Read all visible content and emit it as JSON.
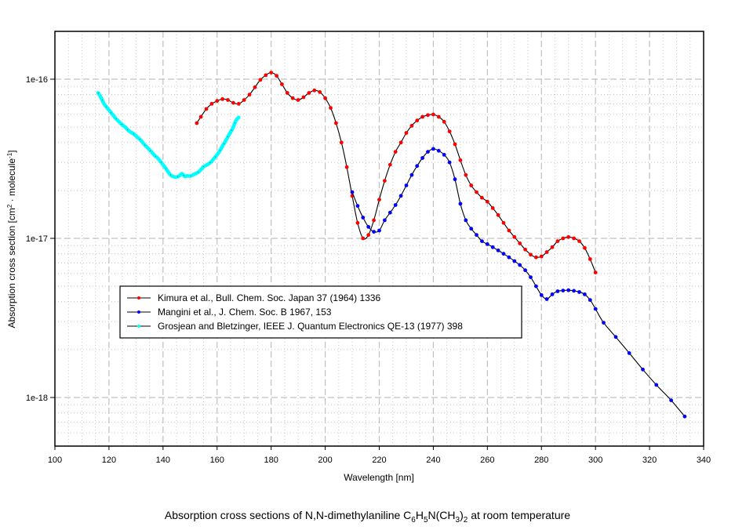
{
  "chart_data": {
    "type": "line",
    "title": "Absorption cross sections of N,N-dimethylaniline C6H5N(CH3)2 at room temperature",
    "caption_parts": {
      "pre": "Absorption cross sections of N,N-dimethylaniline C",
      "s1": "6",
      "mid1": "H",
      "s2": "5",
      "mid2": "N(CH",
      "s3": "3",
      "mid3": ")",
      "s4": "2",
      "post": " at room temperature"
    },
    "xlabel": "Wavelength [nm]",
    "ylabel": "Absorption cross section [cm² · molecule⁻¹]",
    "ylabel_parts": {
      "pre": "Absorption cross section [cm",
      "sup1": "2",
      "mid": " · molecule",
      "sup2": "-1",
      "post": "]"
    },
    "xlim": [
      100,
      340
    ],
    "ylim": [
      5e-19,
      2e-16
    ],
    "yscale": "log",
    "xticks": [
      100,
      120,
      140,
      160,
      180,
      200,
      220,
      240,
      260,
      280,
      300,
      320,
      340
    ],
    "yticks": [
      {
        "value": 1e-16,
        "label": "1e-16"
      },
      {
        "value": 1e-17,
        "label": "1e-17"
      },
      {
        "value": 1e-18,
        "label": "1e-18"
      }
    ],
    "grid": true,
    "legend_position": "lower-left inside",
    "series": [
      {
        "name": "Kimura et al., Bull. Chem. Soc. Japan 37 (1964) 1336",
        "color": "#ff0000",
        "points": [
          [
            152.5,
            5.3e-17
          ],
          [
            154,
            5.8e-17
          ],
          [
            156,
            6.5e-17
          ],
          [
            158,
            7e-17
          ],
          [
            160,
            7.3e-17
          ],
          [
            162,
            7.5e-17
          ],
          [
            164,
            7.4e-17
          ],
          [
            166,
            7.1e-17
          ],
          [
            168,
            7e-17
          ],
          [
            170,
            7.4e-17
          ],
          [
            172,
            8e-17
          ],
          [
            174,
            8.9e-17
          ],
          [
            176,
            9.9e-17
          ],
          [
            178,
            1.06e-16
          ],
          [
            180,
            1.1e-16
          ],
          [
            182,
            1.05e-16
          ],
          [
            184,
            9.3e-17
          ],
          [
            186,
            8.2e-17
          ],
          [
            188,
            7.6e-17
          ],
          [
            190,
            7.4e-17
          ],
          [
            192,
            7.7e-17
          ],
          [
            194,
            8.2e-17
          ],
          [
            196,
            8.5e-17
          ],
          [
            198,
            8.3e-17
          ],
          [
            200,
            7.6e-17
          ],
          [
            202,
            6.6e-17
          ],
          [
            204,
            5.3e-17
          ],
          [
            206,
            4e-17
          ],
          [
            208,
            2.8e-17
          ],
          [
            210,
            1.85e-17
          ],
          [
            212,
            1.25e-17
          ],
          [
            214,
            1e-17
          ],
          [
            216,
            1.05e-17
          ],
          [
            218,
            1.3e-17
          ],
          [
            220,
            1.75e-17
          ],
          [
            222,
            2.3e-17
          ],
          [
            224,
            2.9e-17
          ],
          [
            226,
            3.5e-17
          ],
          [
            228,
            4e-17
          ],
          [
            230,
            4.6e-17
          ],
          [
            232,
            5.1e-17
          ],
          [
            234,
            5.5e-17
          ],
          [
            236,
            5.8e-17
          ],
          [
            238,
            5.95e-17
          ],
          [
            240,
            6e-17
          ],
          [
            242,
            5.8e-17
          ],
          [
            244,
            5.4e-17
          ],
          [
            246,
            4.7e-17
          ],
          [
            248,
            3.9e-17
          ],
          [
            250,
            3.1e-17
          ],
          [
            252,
            2.5e-17
          ],
          [
            254,
            2.15e-17
          ],
          [
            256,
            1.95e-17
          ],
          [
            258,
            1.8e-17
          ],
          [
            260,
            1.7e-17
          ],
          [
            262,
            1.55e-17
          ],
          [
            264,
            1.4e-17
          ],
          [
            266,
            1.25e-17
          ],
          [
            268,
            1.12e-17
          ],
          [
            270,
            1.02e-17
          ],
          [
            272,
            9.3e-18
          ],
          [
            274,
            8.5e-18
          ],
          [
            276,
            7.9e-18
          ],
          [
            278,
            7.6e-18
          ],
          [
            280,
            7.7e-18
          ],
          [
            282,
            8.2e-18
          ],
          [
            284,
            8.8e-18
          ],
          [
            286,
            9.6e-18
          ],
          [
            288,
            1e-17
          ],
          [
            290,
            1.02e-17
          ],
          [
            292,
            1e-17
          ],
          [
            294,
            9.6e-18
          ],
          [
            296,
            8.7e-18
          ],
          [
            298,
            7.4e-18
          ],
          [
            300,
            6.1e-18
          ]
        ]
      },
      {
        "name": "Mangini et al., J. Chem. Soc. B 1967, 153",
        "color": "#0000ff",
        "points": [
          [
            210,
            1.95e-17
          ],
          [
            212,
            1.6e-17
          ],
          [
            214,
            1.35e-17
          ],
          [
            216,
            1.18e-17
          ],
          [
            218,
            1.1e-17
          ],
          [
            220,
            1.12e-17
          ],
          [
            222,
            1.3e-17
          ],
          [
            224,
            1.45e-17
          ],
          [
            226,
            1.62e-17
          ],
          [
            228,
            1.85e-17
          ],
          [
            230,
            2.15e-17
          ],
          [
            232,
            2.5e-17
          ],
          [
            234,
            2.85e-17
          ],
          [
            236,
            3.2e-17
          ],
          [
            238,
            3.5e-17
          ],
          [
            240,
            3.65e-17
          ],
          [
            242,
            3.55e-17
          ],
          [
            244,
            3.35e-17
          ],
          [
            246,
            3e-17
          ],
          [
            248,
            2.35e-17
          ],
          [
            250,
            1.65e-17
          ],
          [
            252,
            1.3e-17
          ],
          [
            254,
            1.15e-17
          ],
          [
            256,
            1.05e-17
          ],
          [
            258,
            9.6e-18
          ],
          [
            260,
            9.2e-18
          ],
          [
            262,
            8.8e-18
          ],
          [
            264,
            8.4e-18
          ],
          [
            266,
            8e-18
          ],
          [
            268,
            7.6e-18
          ],
          [
            270,
            7.2e-18
          ],
          [
            272,
            6.8e-18
          ],
          [
            274,
            6.3e-18
          ],
          [
            276,
            5.7e-18
          ],
          [
            278,
            5e-18
          ],
          [
            280,
            4.4e-18
          ],
          [
            282,
            4.15e-18
          ],
          [
            284,
            4.45e-18
          ],
          [
            286,
            4.65e-18
          ],
          [
            288,
            4.7e-18
          ],
          [
            290,
            4.72e-18
          ],
          [
            292,
            4.68e-18
          ],
          [
            294,
            4.6e-18
          ],
          [
            296,
            4.45e-18
          ],
          [
            298,
            4.1e-18
          ],
          [
            300,
            3.6e-18
          ],
          [
            303,
            2.95e-18
          ],
          [
            307.5,
            2.4e-18
          ],
          [
            312.5,
            1.9e-18
          ],
          [
            317.5,
            1.5e-18
          ],
          [
            322.5,
            1.2e-18
          ],
          [
            328,
            9.6e-19
          ],
          [
            333,
            7.6e-19
          ]
        ]
      },
      {
        "name": "Grosjean and Bletzinger, IEEE J. Quantum Electronics QE-13 (1977) 398",
        "color": "#00ffff",
        "points": [
          [
            116,
            8.2e-17
          ],
          [
            117,
            7.7e-17
          ],
          [
            118,
            7.1e-17
          ],
          [
            119,
            6.7e-17
          ],
          [
            120,
            6.4e-17
          ],
          [
            121,
            6.1e-17
          ],
          [
            122,
            5.8e-17
          ],
          [
            123,
            5.55e-17
          ],
          [
            124,
            5.35e-17
          ],
          [
            125,
            5.15e-17
          ],
          [
            126,
            5e-17
          ],
          [
            127,
            4.8e-17
          ],
          [
            128,
            4.65e-17
          ],
          [
            129,
            4.55e-17
          ],
          [
            130,
            4.4e-17
          ],
          [
            131,
            4.25e-17
          ],
          [
            132,
            4.1e-17
          ],
          [
            133,
            3.9e-17
          ],
          [
            134,
            3.75e-17
          ],
          [
            135,
            3.6e-17
          ],
          [
            136,
            3.45e-17
          ],
          [
            137,
            3.3e-17
          ],
          [
            138,
            3.2e-17
          ],
          [
            139,
            3.05e-17
          ],
          [
            140,
            2.9e-17
          ],
          [
            141,
            2.75e-17
          ],
          [
            142,
            2.6e-17
          ],
          [
            143,
            2.48e-17
          ],
          [
            144,
            2.44e-17
          ],
          [
            145,
            2.43e-17
          ],
          [
            146,
            2.47e-17
          ],
          [
            147,
            2.55e-17
          ],
          [
            148,
            2.45e-17
          ],
          [
            149,
            2.47e-17
          ],
          [
            150,
            2.46e-17
          ],
          [
            151,
            2.5e-17
          ],
          [
            152,
            2.55e-17
          ],
          [
            153,
            2.6e-17
          ],
          [
            154,
            2.7e-17
          ],
          [
            155,
            2.82e-17
          ],
          [
            156,
            2.88e-17
          ],
          [
            157,
            2.95e-17
          ],
          [
            158,
            3.05e-17
          ],
          [
            159,
            3.2e-17
          ],
          [
            160,
            3.35e-17
          ],
          [
            161,
            3.55e-17
          ],
          [
            162,
            3.8e-17
          ],
          [
            163,
            4.05e-17
          ],
          [
            164,
            4.35e-17
          ],
          [
            165,
            4.65e-17
          ],
          [
            166,
            5e-17
          ],
          [
            167,
            5.5e-17
          ],
          [
            168,
            5.75e-17
          ]
        ]
      }
    ]
  },
  "legend": {
    "items": [
      {
        "label": "Kimura et al., Bull. Chem. Soc. Japan 37 (1964) 1336",
        "color": "#ff0000"
      },
      {
        "label": "Mangini et al., J. Chem. Soc. B 1967, 153",
        "color": "#0000ff"
      },
      {
        "label": "Grosjean and Bletzinger, IEEE J. Quantum Electronics QE-13 (1977) 398",
        "color": "#00ffff"
      }
    ]
  }
}
